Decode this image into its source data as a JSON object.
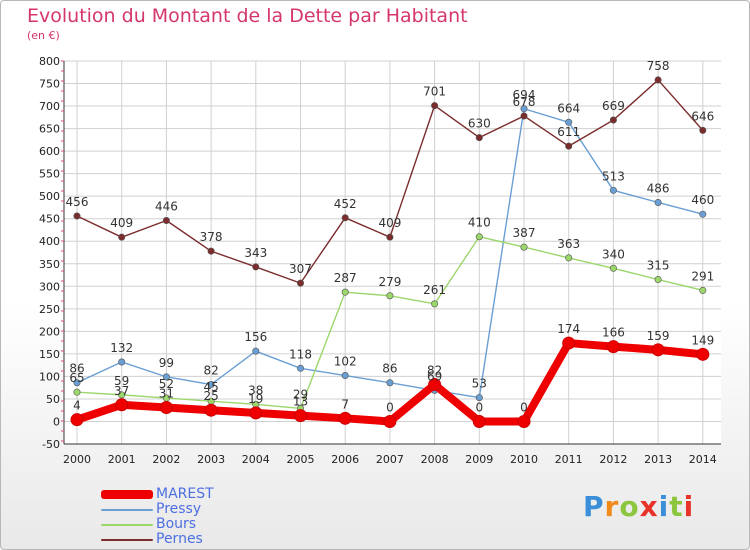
{
  "title": "Evolution du Montant de la Dette par Habitant",
  "unit_label": "(en €)",
  "brand": "Proxiti",
  "brand_colors": [
    "#3a8fd8",
    "#f08a1c",
    "#8cc63f",
    "#e8332a",
    "#3a8fd8",
    "#8cc63f",
    "#e8332a"
  ],
  "chart_data": {
    "type": "line",
    "title": "Evolution du Montant de la Dette par Habitant",
    "ylabel": "(en €)",
    "xlabel": "",
    "x": [
      "2000",
      "2001",
      "2002",
      "2003",
      "2004",
      "2005",
      "2006",
      "2007",
      "2008",
      "2009",
      "2010",
      "2011",
      "2012",
      "2013",
      "2014"
    ],
    "ylim": [
      -50,
      800
    ],
    "yticks": [
      "-50",
      "0",
      "50",
      "100",
      "150",
      "200",
      "250",
      "300",
      "350",
      "400",
      "450",
      "500",
      "550",
      "600",
      "650",
      "700",
      "750",
      "800"
    ],
    "grid": true,
    "legend_position": "bottom-left",
    "series": [
      {
        "name": "MAREST",
        "color": "#ee0000",
        "highlight": true,
        "values": [
          4,
          37,
          31,
          25,
          19,
          13,
          7,
          0,
          82,
          0,
          0,
          174,
          166,
          159,
          149
        ],
        "labels": [
          "4",
          "37",
          "31",
          "25",
          "19",
          "13",
          "7",
          "0",
          "82",
          "0",
          "0",
          "174",
          "166",
          "159",
          "149"
        ]
      },
      {
        "name": "Pressy",
        "color": "#6a9fd4",
        "highlight": false,
        "values": [
          86,
          132,
          99,
          82,
          156,
          118,
          102,
          86,
          69,
          53,
          694,
          664,
          513,
          486,
          460
        ],
        "labels": [
          "86",
          "132",
          "99",
          "82",
          "156",
          "118",
          "102",
          "86",
          "69",
          "53",
          "694",
          "664",
          "513",
          "486",
          "460"
        ]
      },
      {
        "name": "Bours",
        "color": "#9cd76b",
        "highlight": false,
        "values": [
          65,
          59,
          52,
          45,
          38,
          29,
          287,
          279,
          261,
          410,
          387,
          363,
          340,
          315,
          291
        ],
        "labels": [
          "65",
          "59",
          "52",
          "45",
          "38",
          "29",
          "287",
          "279",
          "261",
          "410",
          "387",
          "363",
          "340",
          "315",
          "291"
        ]
      },
      {
        "name": "Pernes",
        "color": "#7b2c2c",
        "highlight": false,
        "values": [
          456,
          409,
          446,
          378,
          343,
          307,
          452,
          409,
          701,
          630,
          678,
          611,
          669,
          758,
          646
        ],
        "labels": [
          "456",
          "409",
          "446",
          "378",
          "343",
          "307",
          "452",
          "409",
          "701",
          "630",
          "678",
          "611",
          "669",
          "758",
          "646"
        ]
      }
    ]
  }
}
